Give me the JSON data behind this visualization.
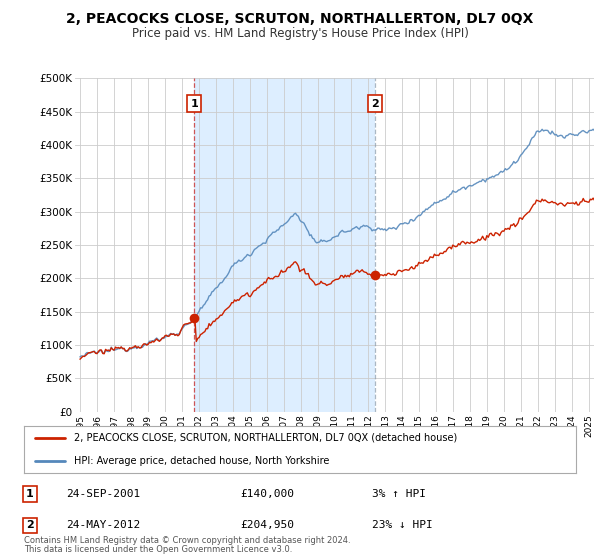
{
  "title": "2, PEACOCKS CLOSE, SCRUTON, NORTHALLERTON, DL7 0QX",
  "subtitle": "Price paid vs. HM Land Registry's House Price Index (HPI)",
  "legend_line1": "2, PEACOCKS CLOSE, SCRUTON, NORTHALLERTON, DL7 0QX (detached house)",
  "legend_line2": "HPI: Average price, detached house, North Yorkshire",
  "footnote1": "Contains HM Land Registry data © Crown copyright and database right 2024.",
  "footnote2": "This data is licensed under the Open Government Licence v3.0.",
  "table": [
    {
      "num": "1",
      "date": "24-SEP-2001",
      "price": "£140,000",
      "change": "3% ↑ HPI"
    },
    {
      "num": "2",
      "date": "24-MAY-2012",
      "price": "£204,950",
      "change": "23% ↓ HPI"
    }
  ],
  "marker1_year": 2001.73,
  "marker2_year": 2012.39,
  "sale1_price": 140000,
  "sale2_price": 204950,
  "hpi_color": "#5588bb",
  "price_color": "#cc2200",
  "marker_color": "#cc2200",
  "bg_color": "#ffffff",
  "highlight_color": "#ddeeff",
  "plot_bg": "#f0f4f8",
  "ylim_min": 0,
  "ylim_max": 500000,
  "ytick_step": 50000,
  "grid_color": "#cccccc",
  "legend_box_color": "#cc2200",
  "vline1_color": "#cc4444",
  "vline2_color": "#8899aa"
}
